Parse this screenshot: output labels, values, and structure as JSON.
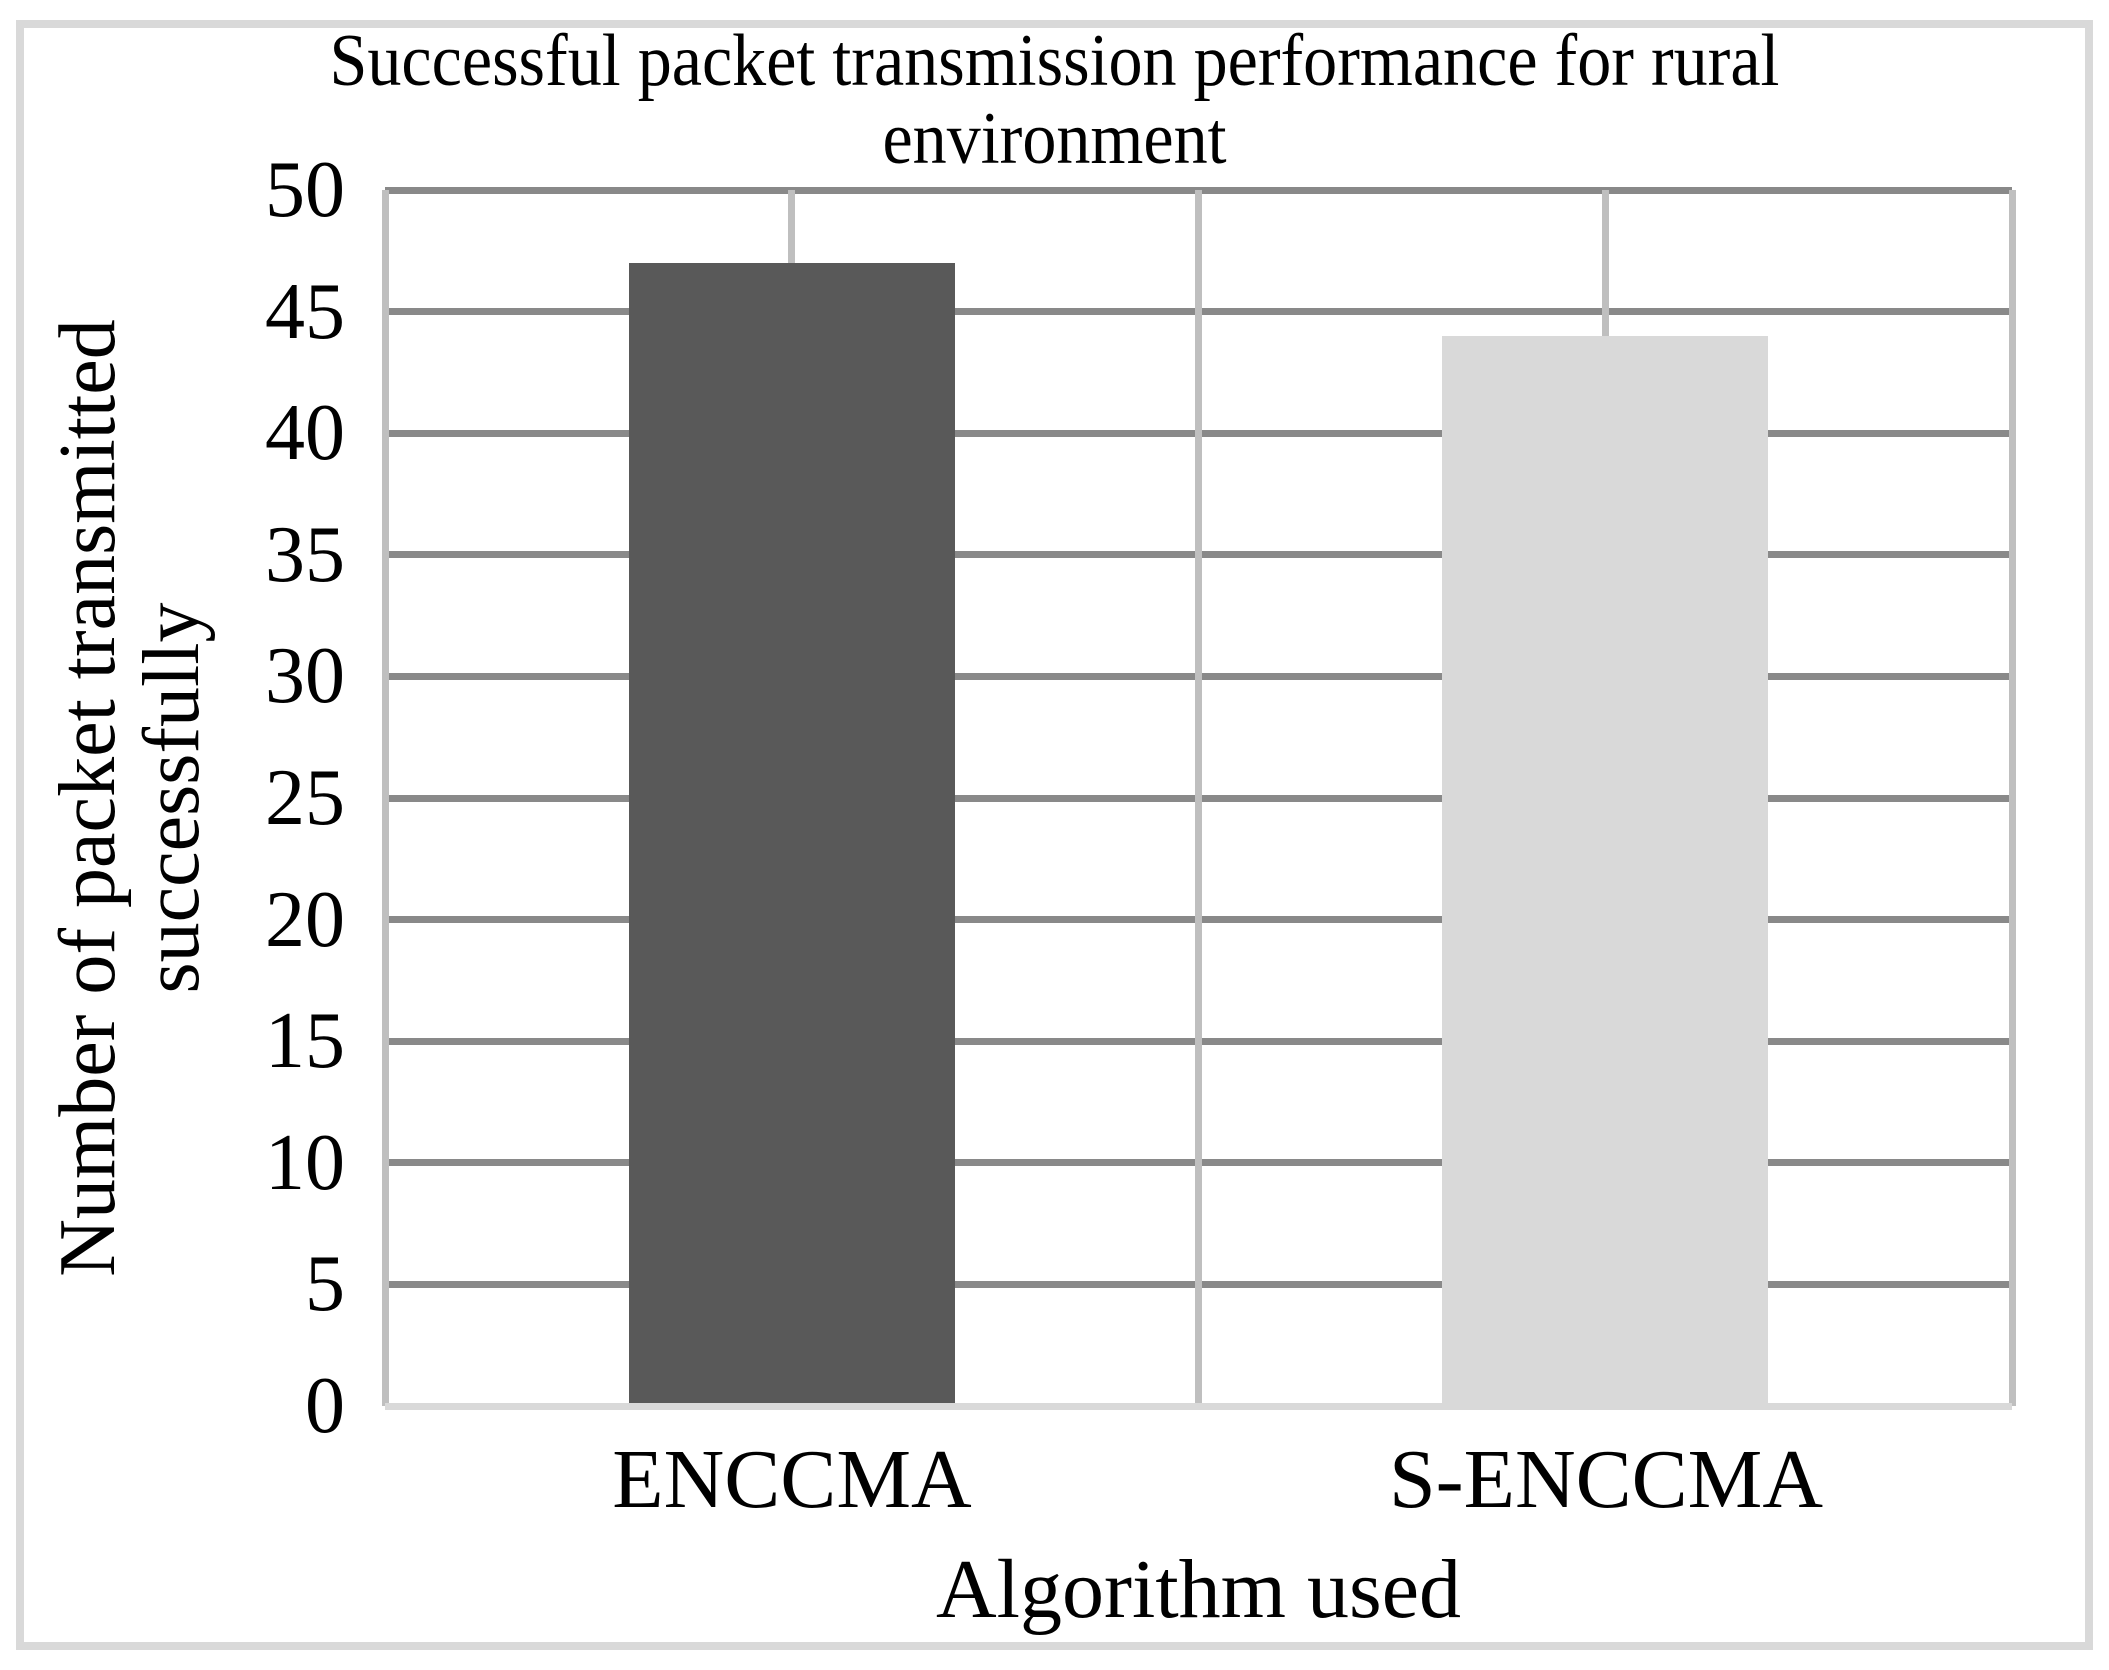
{
  "figure": {
    "frame_color": "#D9D9D9",
    "background": "#ffffff"
  },
  "chart_data": {
    "type": "bar",
    "title": "Successful packet transmission performance for rural environment",
    "title_lines": [
      "Successful packet transmission performance for rural",
      "environment"
    ],
    "categories": [
      "ENCCMA",
      "S-ENCCMA"
    ],
    "values": [
      47,
      44
    ],
    "bar_colors": [
      "#595959",
      "#D9D9D9"
    ],
    "xlabel": "Algorithm used",
    "ylabel": "Number of packet transmitted successfully",
    "ylabel_lines": [
      "Number of packet transmitted",
      "successfully"
    ],
    "ylim": [
      0,
      50
    ],
    "ytick_step": 5,
    "yticks": [
      0,
      5,
      10,
      15,
      20,
      25,
      30,
      35,
      40,
      45,
      50
    ],
    "grid": {
      "horizontal": true,
      "vertical": true,
      "horizontal_color": "#898989",
      "vertical_color": "#BFBFBF",
      "baseline_color": "#D9D9D9"
    },
    "legend": "none",
    "text_color": "#000000"
  }
}
